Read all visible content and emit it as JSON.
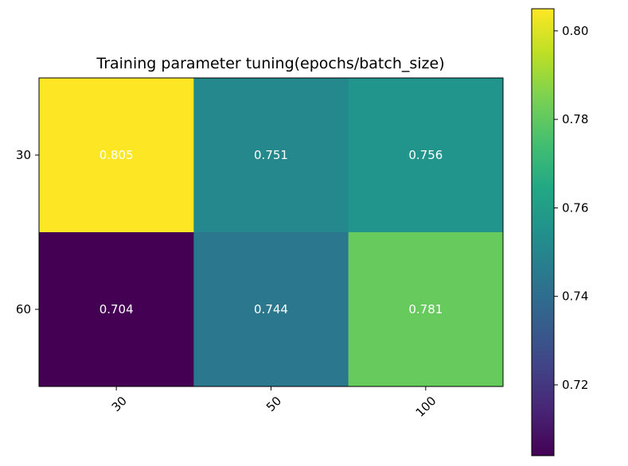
{
  "chart_data": {
    "type": "heatmap",
    "title": "Training parameter tuning(epochs/batch_size)",
    "xlabel": "",
    "ylabel": "",
    "x_categories": [
      "30",
      "50",
      "100"
    ],
    "y_categories": [
      "30",
      "60"
    ],
    "values": [
      [
        0.805,
        0.751,
        0.756
      ],
      [
        0.704,
        0.744,
        0.781
      ]
    ],
    "cell_labels": [
      [
        "0.805",
        "0.751",
        "0.756"
      ],
      [
        "0.704",
        "0.744",
        "0.781"
      ]
    ],
    "cell_label_color": "#ffffff",
    "colormap": "viridis",
    "colorbar": {
      "range": [
        0.704,
        0.805
      ],
      "ticks": [
        0.72,
        0.74,
        0.76,
        0.78,
        0.8
      ],
      "tick_labels": [
        "0.72",
        "0.74",
        "0.76",
        "0.78",
        "0.80"
      ]
    },
    "x_tick_rotation": "45 degrees",
    "grid": false
  }
}
